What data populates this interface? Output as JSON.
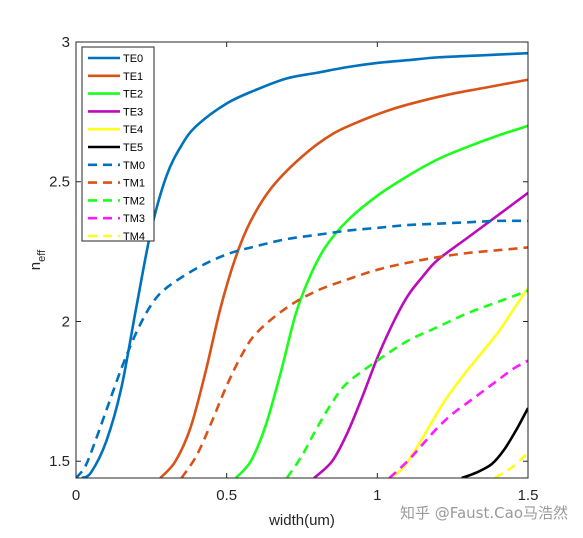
{
  "chart_data": {
    "type": "line",
    "title": "",
    "xlabel": "width(um)",
    "ylabel": "n",
    "ylabel_subscript": "eff",
    "xlim": [
      0,
      1.5
    ],
    "ylim": [
      1.44,
      3.0
    ],
    "x_ticks": [
      0,
      0.5,
      1,
      1.5
    ],
    "x_tick_labels": [
      "0",
      "0.5",
      "1",
      "1.5"
    ],
    "y_ticks": [
      1.5,
      2,
      2.5,
      3
    ],
    "y_tick_labels": [
      "1.5",
      "2",
      "2.5",
      "3"
    ],
    "grid": false,
    "legend_position": "top-left",
    "series": [
      {
        "name": "TE0",
        "color": "#0072bd",
        "dash": "solid",
        "points": [
          [
            0.02,
            1.44
          ],
          [
            0.05,
            1.46
          ],
          [
            0.1,
            1.57
          ],
          [
            0.15,
            1.76
          ],
          [
            0.2,
            2.05
          ],
          [
            0.25,
            2.33
          ],
          [
            0.3,
            2.52
          ],
          [
            0.35,
            2.63
          ],
          [
            0.4,
            2.7
          ],
          [
            0.5,
            2.78
          ],
          [
            0.6,
            2.83
          ],
          [
            0.7,
            2.87
          ],
          [
            0.8,
            2.89
          ],
          [
            0.9,
            2.91
          ],
          [
            1.0,
            2.925
          ],
          [
            1.1,
            2.935
          ],
          [
            1.2,
            2.945
          ],
          [
            1.3,
            2.95
          ],
          [
            1.4,
            2.955
          ],
          [
            1.5,
            2.96
          ]
        ]
      },
      {
        "name": "TE1",
        "color": "#d95319",
        "dash": "solid",
        "points": [
          [
            0.28,
            1.44
          ],
          [
            0.33,
            1.5
          ],
          [
            0.38,
            1.62
          ],
          [
            0.43,
            1.82
          ],
          [
            0.48,
            2.05
          ],
          [
            0.53,
            2.23
          ],
          [
            0.58,
            2.36
          ],
          [
            0.65,
            2.48
          ],
          [
            0.75,
            2.59
          ],
          [
            0.85,
            2.67
          ],
          [
            0.95,
            2.72
          ],
          [
            1.05,
            2.76
          ],
          [
            1.15,
            2.79
          ],
          [
            1.25,
            2.815
          ],
          [
            1.35,
            2.835
          ],
          [
            1.5,
            2.865
          ]
        ]
      },
      {
        "name": "TE2",
        "color": "#1aff1a",
        "dash": "solid",
        "points": [
          [
            0.53,
            1.44
          ],
          [
            0.58,
            1.5
          ],
          [
            0.63,
            1.63
          ],
          [
            0.68,
            1.82
          ],
          [
            0.73,
            2.03
          ],
          [
            0.78,
            2.17
          ],
          [
            0.83,
            2.27
          ],
          [
            0.9,
            2.36
          ],
          [
            1.0,
            2.45
          ],
          [
            1.1,
            2.52
          ],
          [
            1.2,
            2.58
          ],
          [
            1.3,
            2.625
          ],
          [
            1.4,
            2.665
          ],
          [
            1.5,
            2.7
          ]
        ]
      },
      {
        "name": "TE3",
        "color": "#bb0bbb",
        "dash": "solid",
        "points": [
          [
            0.79,
            1.44
          ],
          [
            0.85,
            1.5
          ],
          [
            0.9,
            1.6
          ],
          [
            0.95,
            1.73
          ],
          [
            1.0,
            1.87
          ],
          [
            1.05,
            1.99
          ],
          [
            1.1,
            2.09
          ],
          [
            1.15,
            2.16
          ],
          [
            1.2,
            2.22
          ],
          [
            1.3,
            2.3
          ],
          [
            1.4,
            2.38
          ],
          [
            1.5,
            2.46
          ]
        ]
      },
      {
        "name": "TE4",
        "color": "#ffff1a",
        "dash": "solid",
        "points": [
          [
            1.04,
            1.44
          ],
          [
            1.08,
            1.47
          ],
          [
            1.12,
            1.53
          ],
          [
            1.17,
            1.62
          ],
          [
            1.22,
            1.71
          ],
          [
            1.28,
            1.8
          ],
          [
            1.34,
            1.88
          ],
          [
            1.4,
            1.96
          ],
          [
            1.45,
            2.04
          ],
          [
            1.5,
            2.12
          ]
        ]
      },
      {
        "name": "TE5",
        "color": "#000000",
        "dash": "solid",
        "points": [
          [
            1.28,
            1.44
          ],
          [
            1.33,
            1.46
          ],
          [
            1.38,
            1.49
          ],
          [
            1.42,
            1.54
          ],
          [
            1.46,
            1.61
          ],
          [
            1.5,
            1.69
          ]
        ]
      },
      {
        "name": "TM0",
        "color": "#0072bd",
        "dash": "dashed",
        "points": [
          [
            0.0,
            1.44
          ],
          [
            0.03,
            1.48
          ],
          [
            0.06,
            1.56
          ],
          [
            0.1,
            1.68
          ],
          [
            0.15,
            1.83
          ],
          [
            0.2,
            1.96
          ],
          [
            0.25,
            2.06
          ],
          [
            0.3,
            2.12
          ],
          [
            0.4,
            2.19
          ],
          [
            0.5,
            2.24
          ],
          [
            0.6,
            2.27
          ],
          [
            0.7,
            2.295
          ],
          [
            0.8,
            2.31
          ],
          [
            0.9,
            2.325
          ],
          [
            1.0,
            2.335
          ],
          [
            1.1,
            2.345
          ],
          [
            1.2,
            2.35
          ],
          [
            1.3,
            2.355
          ],
          [
            1.4,
            2.36
          ],
          [
            1.5,
            2.36
          ]
        ]
      },
      {
        "name": "TM1",
        "color": "#d95319",
        "dash": "dashed",
        "points": [
          [
            0.35,
            1.44
          ],
          [
            0.4,
            1.52
          ],
          [
            0.45,
            1.64
          ],
          [
            0.5,
            1.77
          ],
          [
            0.55,
            1.88
          ],
          [
            0.6,
            1.96
          ],
          [
            0.7,
            2.05
          ],
          [
            0.8,
            2.11
          ],
          [
            0.9,
            2.15
          ],
          [
            1.0,
            2.185
          ],
          [
            1.1,
            2.21
          ],
          [
            1.2,
            2.23
          ],
          [
            1.3,
            2.245
          ],
          [
            1.4,
            2.255
          ],
          [
            1.5,
            2.265
          ]
        ]
      },
      {
        "name": "TM2",
        "color": "#1aff1a",
        "dash": "dashed",
        "points": [
          [
            0.7,
            1.44
          ],
          [
            0.75,
            1.52
          ],
          [
            0.8,
            1.62
          ],
          [
            0.85,
            1.71
          ],
          [
            0.9,
            1.78
          ],
          [
            1.0,
            1.86
          ],
          [
            1.1,
            1.93
          ],
          [
            1.2,
            1.98
          ],
          [
            1.3,
            2.03
          ],
          [
            1.4,
            2.07
          ],
          [
            1.5,
            2.11
          ]
        ]
      },
      {
        "name": "TM3",
        "color": "#ff1aff",
        "dash": "dashed",
        "points": [
          [
            1.04,
            1.44
          ],
          [
            1.1,
            1.5
          ],
          [
            1.15,
            1.56
          ],
          [
            1.2,
            1.62
          ],
          [
            1.25,
            1.67
          ],
          [
            1.3,
            1.71
          ],
          [
            1.35,
            1.75
          ],
          [
            1.4,
            1.79
          ],
          [
            1.45,
            1.83
          ],
          [
            1.5,
            1.86
          ]
        ]
      },
      {
        "name": "TM4",
        "color": "#ffff1a",
        "dash": "dashed",
        "points": [
          [
            1.39,
            1.44
          ],
          [
            1.42,
            1.46
          ],
          [
            1.45,
            1.48
          ],
          [
            1.48,
            1.51
          ],
          [
            1.5,
            1.53
          ]
        ]
      }
    ]
  },
  "watermark": "知乎 @Faust.Cao马浩然"
}
